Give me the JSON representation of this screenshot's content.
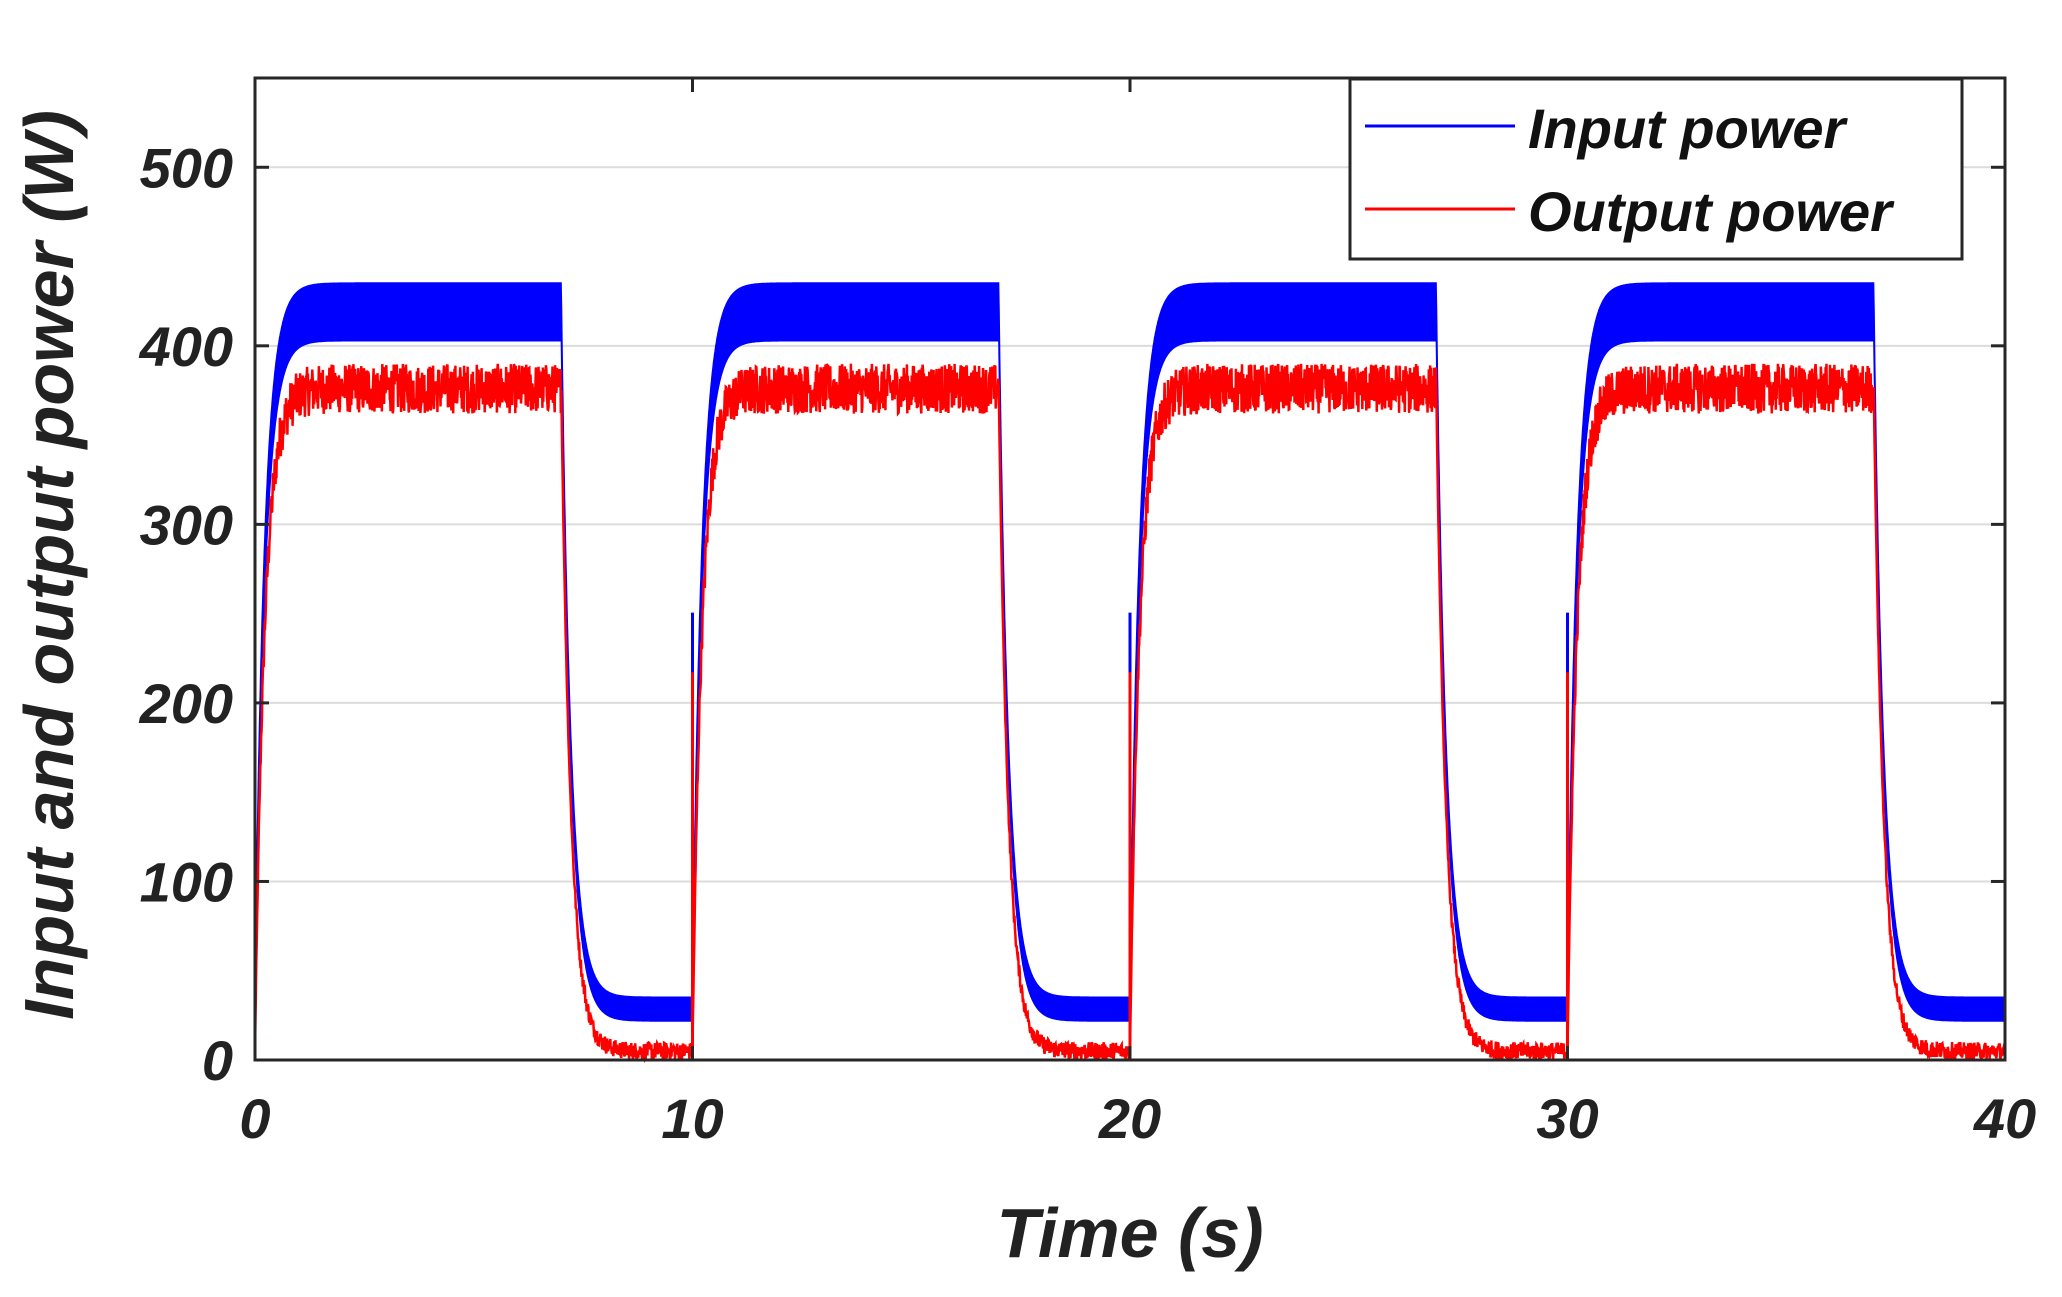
{
  "chart_data": {
    "type": "line",
    "title": "",
    "xlabel": "Time (s)",
    "ylabel": "Input and output power (W)",
    "xlim": [
      0,
      40
    ],
    "ylim": [
      0,
      550
    ],
    "xticks": [
      0,
      10,
      20,
      30,
      40
    ],
    "yticks": [
      0,
      100,
      200,
      300,
      400,
      500
    ],
    "grid": "horizontal",
    "legend": "top-right",
    "series": [
      {
        "name": "Input power",
        "color": "#0000ff",
        "on_level_min": 403,
        "on_level_max": 435,
        "off_level_min": 22,
        "off_level_max": 35,
        "on_intervals": [
          [
            0,
            7
          ],
          [
            10,
            17
          ],
          [
            20,
            27
          ],
          [
            30,
            37
          ]
        ]
      },
      {
        "name": "Output power",
        "color": "#ff0000",
        "on_level_min": 362,
        "on_level_max": 390,
        "off_level_min": 0,
        "off_level_max": 10,
        "on_intervals": [
          [
            0,
            7
          ],
          [
            10,
            17
          ],
          [
            20,
            27
          ],
          [
            30,
            37
          ]
        ]
      }
    ]
  }
}
